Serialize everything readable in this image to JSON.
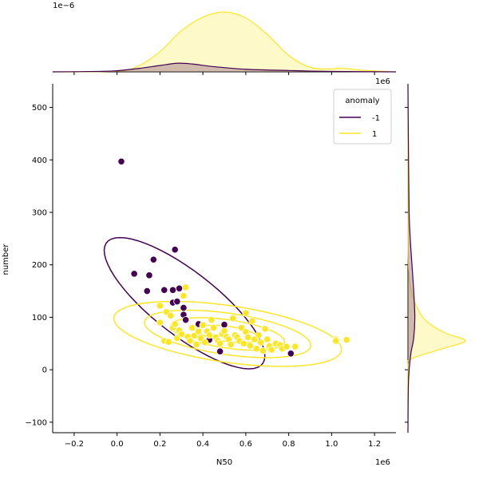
{
  "chart_data": {
    "type": "scatter",
    "subtype": "jointplot",
    "xlabel": "N50",
    "ylabel": "number",
    "x_offset_text": "1e6",
    "y_top_margin_offset_text": "1e−6",
    "x_right_margin_offset_text": "1e6",
    "xlim": [
      -0.3,
      1.3
    ],
    "ylim": [
      -120,
      545
    ],
    "x_ticks": [
      -0.2,
      0.0,
      0.2,
      0.4,
      0.6,
      0.8,
      1.0,
      1.2
    ],
    "x_tick_labels": [
      "−0.2",
      "0.0",
      "0.2",
      "0.4",
      "0.6",
      "0.8",
      "1.0",
      "1.2"
    ],
    "y_ticks": [
      -100,
      0,
      100,
      200,
      300,
      400,
      500
    ],
    "y_tick_labels": [
      "−100",
      "0",
      "100",
      "200",
      "300",
      "400",
      "500"
    ],
    "grid": false,
    "legend": {
      "title": "anomaly",
      "placement": "top-right",
      "entries": [
        {
          "label": "-1",
          "color": "#440154"
        },
        {
          "label": "1",
          "color": "#fde725"
        }
      ]
    },
    "series": [
      {
        "name": "-1",
        "color": "#440154",
        "points": [
          [
            0.02,
            397
          ],
          [
            0.08,
            183
          ],
          [
            0.14,
            150
          ],
          [
            0.15,
            180
          ],
          [
            0.17,
            210
          ],
          [
            0.22,
            152
          ],
          [
            0.26,
            152
          ],
          [
            0.27,
            229
          ],
          [
            0.29,
            155
          ],
          [
            0.26,
            128
          ],
          [
            0.28,
            130
          ],
          [
            0.31,
            118
          ],
          [
            0.31,
            105
          ],
          [
            0.32,
            95
          ],
          [
            0.38,
            87
          ],
          [
            0.43,
            57
          ],
          [
            0.48,
            35
          ],
          [
            0.5,
            86
          ],
          [
            0.81,
            31
          ]
        ]
      },
      {
        "name": "1",
        "color": "#fde725",
        "points": [
          [
            0.2,
            122
          ],
          [
            0.2,
            90
          ],
          [
            0.22,
            55
          ],
          [
            0.23,
            110
          ],
          [
            0.24,
            53
          ],
          [
            0.25,
            103
          ],
          [
            0.26,
            80
          ],
          [
            0.27,
            87
          ],
          [
            0.28,
            60
          ],
          [
            0.29,
            75
          ],
          [
            0.3,
            68
          ],
          [
            0.31,
            141
          ],
          [
            0.32,
            157
          ],
          [
            0.33,
            63
          ],
          [
            0.34,
            55
          ],
          [
            0.35,
            80
          ],
          [
            0.36,
            65
          ],
          [
            0.37,
            48
          ],
          [
            0.38,
            73
          ],
          [
            0.39,
            60
          ],
          [
            0.4,
            85
          ],
          [
            0.41,
            52
          ],
          [
            0.42,
            73
          ],
          [
            0.43,
            66
          ],
          [
            0.44,
            95
          ],
          [
            0.45,
            80
          ],
          [
            0.46,
            62
          ],
          [
            0.47,
            55
          ],
          [
            0.48,
            50
          ],
          [
            0.49,
            68
          ],
          [
            0.5,
            74
          ],
          [
            0.51,
            63
          ],
          [
            0.52,
            58
          ],
          [
            0.53,
            48
          ],
          [
            0.54,
            98
          ],
          [
            0.55,
            66
          ],
          [
            0.56,
            62
          ],
          [
            0.57,
            55
          ],
          [
            0.58,
            80
          ],
          [
            0.59,
            50
          ],
          [
            0.6,
            108
          ],
          [
            0.6,
            72
          ],
          [
            0.61,
            62
          ],
          [
            0.62,
            46
          ],
          [
            0.63,
            93
          ],
          [
            0.64,
            58
          ],
          [
            0.65,
            40
          ],
          [
            0.66,
            66
          ],
          [
            0.67,
            52
          ],
          [
            0.68,
            36
          ],
          [
            0.69,
            78
          ],
          [
            0.7,
            58
          ],
          [
            0.71,
            45
          ],
          [
            0.72,
            38
          ],
          [
            0.74,
            50
          ],
          [
            0.76,
            47
          ],
          [
            0.77,
            40
          ],
          [
            0.79,
            44
          ],
          [
            0.83,
            44
          ],
          [
            1.02,
            58
          ],
          [
            1.02,
            55
          ],
          [
            1.07,
            57
          ]
        ]
      }
    ],
    "marginal_x_density": {
      "unit_scale": "1e−6",
      "series": [
        {
          "name": "-1",
          "x": [
            -0.3,
            -0.1,
            0.0,
            0.1,
            0.2,
            0.28,
            0.35,
            0.45,
            0.6,
            0.8,
            1.0,
            1.3
          ],
          "density": [
            0.0,
            0.005,
            0.015,
            0.045,
            0.085,
            0.115,
            0.105,
            0.07,
            0.035,
            0.018,
            0.006,
            0.0
          ]
        },
        {
          "name": "1",
          "x": [
            -0.3,
            0.0,
            0.1,
            0.2,
            0.3,
            0.4,
            0.5,
            0.6,
            0.7,
            0.8,
            0.9,
            1.0,
            1.05,
            1.15,
            1.3
          ],
          "density": [
            0.0,
            0.01,
            0.08,
            0.27,
            0.55,
            0.73,
            0.8,
            0.72,
            0.5,
            0.22,
            0.06,
            0.04,
            0.05,
            0.02,
            0.0
          ]
        }
      ]
    },
    "marginal_y_density": {
      "series": [
        {
          "name": "-1",
          "y": [
            -120,
            -20,
            30,
            60,
            100,
            150,
            200,
            250,
            300,
            400,
            545
          ],
          "density": [
            0.0,
            0.01,
            0.05,
            0.1,
            0.12,
            0.1,
            0.07,
            0.04,
            0.02,
            0.01,
            0.0
          ]
        },
        {
          "name": "1",
          "y": [
            -120,
            0,
            20,
            40,
            55,
            70,
            90,
            110,
            140,
            180,
            250,
            545
          ],
          "density": [
            0.0,
            0.0,
            0.05,
            0.6,
            1.0,
            0.65,
            0.35,
            0.2,
            0.08,
            0.02,
            0.0,
            0.0
          ]
        }
      ]
    }
  }
}
